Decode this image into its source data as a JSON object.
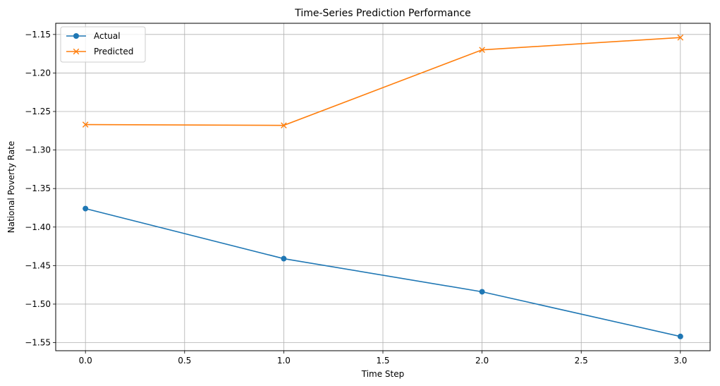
{
  "chart_data": {
    "type": "line",
    "title": "Time-Series Prediction Performance",
    "xlabel": "Time Step",
    "ylabel": "National Poverty Rate",
    "xlim": [
      -0.15,
      3.15
    ],
    "ylim": [
      -1.5605,
      -1.1355
    ],
    "x_ticks": [
      0.0,
      0.5,
      1.0,
      1.5,
      2.0,
      2.5,
      3.0
    ],
    "x_tick_labels": [
      "0.0",
      "0.5",
      "1.0",
      "1.5",
      "2.0",
      "2.5",
      "3.0"
    ],
    "y_ticks": [
      -1.15,
      -1.2,
      -1.25,
      -1.3,
      -1.35,
      -1.4,
      -1.45,
      -1.5,
      -1.55
    ],
    "y_tick_labels": [
      "−1.15",
      "−1.20",
      "−1.25",
      "−1.30",
      "−1.35",
      "−1.40",
      "−1.45",
      "−1.50",
      "−1.55"
    ],
    "grid": true,
    "legend_position": "top-left",
    "x": [
      0,
      1,
      2,
      3
    ],
    "series": [
      {
        "name": "Actual",
        "values": [
          -1.376,
          -1.441,
          -1.484,
          -1.542
        ],
        "color": "#1f77b4",
        "marker": "circle"
      },
      {
        "name": "Predicted",
        "values": [
          -1.267,
          -1.268,
          -1.17,
          -1.154
        ],
        "color": "#ff7f0e",
        "marker": "x"
      }
    ]
  }
}
